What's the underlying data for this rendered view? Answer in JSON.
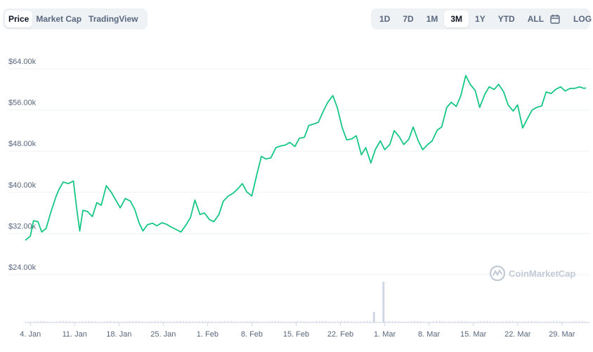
{
  "tabs_left": [
    {
      "label": "Price",
      "active": true
    },
    {
      "label": "Market Cap",
      "active": false
    },
    {
      "label": "TradingView",
      "active": false
    }
  ],
  "ranges": [
    {
      "label": "1D",
      "active": false
    },
    {
      "label": "7D",
      "active": false
    },
    {
      "label": "1M",
      "active": false
    },
    {
      "label": "3M",
      "active": true
    },
    {
      "label": "1Y",
      "active": false
    },
    {
      "label": "YTD",
      "active": false
    },
    {
      "label": "ALL",
      "active": false
    }
  ],
  "calendar_icon": "calendar-icon",
  "log_label": "LOG",
  "watermark": "CoinMarketCap",
  "colors": {
    "line": "#16c784",
    "grid": "#eff2f5",
    "volume": "#cfd6e4",
    "text": "#58667e"
  },
  "chart_data": {
    "type": "line",
    "title": "",
    "xlabel": "",
    "ylabel": "",
    "ylim": [
      16000,
      68000
    ],
    "y_ticks": [
      {
        "value": 64000,
        "label": "$64.00k"
      },
      {
        "value": 56000,
        "label": "$56.00k"
      },
      {
        "value": 48000,
        "label": "$48.00k"
      },
      {
        "value": 40000,
        "label": "$40.00k"
      },
      {
        "value": 32000,
        "label": "$32.00k"
      },
      {
        "value": 24000,
        "label": "$24.00k"
      }
    ],
    "x_ticks": [
      {
        "day": 3,
        "label": "4. Jan"
      },
      {
        "day": 10,
        "label": "11. Jan"
      },
      {
        "day": 17,
        "label": "18. Jan"
      },
      {
        "day": 24,
        "label": "25. Jan"
      },
      {
        "day": 31,
        "label": "1. Feb"
      },
      {
        "day": 38,
        "label": "8. Feb"
      },
      {
        "day": 45,
        "label": "15. Feb"
      },
      {
        "day": 52,
        "label": "22. Feb"
      },
      {
        "day": 59,
        "label": "1. Mar"
      },
      {
        "day": 66,
        "label": "8. Mar"
      },
      {
        "day": 73,
        "label": "15. Mar"
      },
      {
        "day": 80,
        "label": "22. Mar"
      },
      {
        "day": 87,
        "label": "29. Mar"
      }
    ],
    "x_range_days": [
      2.2,
      90.8
    ],
    "series": [
      {
        "values": [
          [
            2.2,
            29200
          ],
          [
            3.0,
            30000
          ],
          [
            3.5,
            33000
          ],
          [
            4.2,
            32800
          ],
          [
            4.8,
            30800
          ],
          [
            5.5,
            31500
          ],
          [
            6.2,
            34500
          ],
          [
            7.0,
            37500
          ],
          [
            7.5,
            39000
          ],
          [
            8.2,
            40500
          ],
          [
            9.0,
            40200
          ],
          [
            9.8,
            40700
          ],
          [
            10.3,
            35500
          ],
          [
            10.8,
            31000
          ],
          [
            11.3,
            35000
          ],
          [
            12.0,
            34800
          ],
          [
            12.8,
            33800
          ],
          [
            13.5,
            36500
          ],
          [
            14.2,
            36000
          ],
          [
            15.0,
            39800
          ],
          [
            15.8,
            38500
          ],
          [
            16.5,
            37000
          ],
          [
            17.2,
            35500
          ],
          [
            18.0,
            37300
          ],
          [
            18.8,
            36800
          ],
          [
            19.5,
            35200
          ],
          [
            20.2,
            32500
          ],
          [
            20.8,
            31000
          ],
          [
            21.5,
            32200
          ],
          [
            22.3,
            32500
          ],
          [
            23.0,
            32000
          ],
          [
            23.8,
            32600
          ],
          [
            24.5,
            32300
          ],
          [
            25.2,
            31800
          ],
          [
            26.0,
            31300
          ],
          [
            26.8,
            30800
          ],
          [
            27.5,
            32000
          ],
          [
            28.3,
            33600
          ],
          [
            29.0,
            37000
          ],
          [
            29.8,
            34200
          ],
          [
            30.5,
            34500
          ],
          [
            31.3,
            33200
          ],
          [
            32.0,
            32800
          ],
          [
            32.8,
            34200
          ],
          [
            33.5,
            36800
          ],
          [
            34.3,
            37800
          ],
          [
            35.0,
            38300
          ],
          [
            35.8,
            39200
          ],
          [
            36.5,
            40200
          ],
          [
            37.2,
            38600
          ],
          [
            38.0,
            37800
          ],
          [
            38.8,
            42000
          ],
          [
            39.5,
            45500
          ],
          [
            40.2,
            45000
          ],
          [
            41.0,
            45200
          ],
          [
            41.8,
            47200
          ],
          [
            42.5,
            47500
          ],
          [
            43.3,
            47700
          ],
          [
            44.0,
            48200
          ],
          [
            44.8,
            47400
          ],
          [
            45.5,
            49000
          ],
          [
            46.3,
            49200
          ],
          [
            47.0,
            51500
          ],
          [
            47.8,
            51800
          ],
          [
            48.5,
            52100
          ],
          [
            49.3,
            54300
          ],
          [
            50.0,
            56000
          ],
          [
            50.8,
            57300
          ],
          [
            51.5,
            55000
          ],
          [
            52.3,
            51000
          ],
          [
            53.0,
            48700
          ],
          [
            53.8,
            48900
          ],
          [
            54.5,
            49500
          ],
          [
            55.3,
            45800
          ],
          [
            56.0,
            47200
          ],
          [
            56.8,
            44200
          ],
          [
            57.5,
            46800
          ],
          [
            58.3,
            48500
          ],
          [
            59.0,
            46800
          ],
          [
            59.8,
            47800
          ],
          [
            60.5,
            50500
          ],
          [
            61.3,
            49300
          ],
          [
            62.0,
            47800
          ],
          [
            62.8,
            48800
          ],
          [
            63.5,
            51200
          ],
          [
            64.3,
            48500
          ],
          [
            65.0,
            46800
          ],
          [
            65.8,
            47800
          ],
          [
            66.5,
            48500
          ],
          [
            67.3,
            50600
          ],
          [
            68.0,
            51200
          ],
          [
            68.8,
            55000
          ],
          [
            69.5,
            56000
          ],
          [
            70.3,
            55200
          ],
          [
            71.0,
            57200
          ],
          [
            71.8,
            61200
          ],
          [
            72.5,
            59500
          ],
          [
            73.3,
            58300
          ],
          [
            74.0,
            55000
          ],
          [
            74.8,
            57500
          ],
          [
            75.5,
            59000
          ],
          [
            76.3,
            58500
          ],
          [
            77.0,
            59500
          ],
          [
            77.8,
            58000
          ],
          [
            78.5,
            55500
          ],
          [
            79.3,
            54300
          ],
          [
            80.0,
            55500
          ],
          [
            80.8,
            51000
          ],
          [
            81.5,
            52700
          ],
          [
            82.3,
            54500
          ],
          [
            83.0,
            55000
          ],
          [
            83.8,
            55300
          ],
          [
            84.5,
            58000
          ],
          [
            85.3,
            57700
          ],
          [
            86.0,
            58500
          ],
          [
            86.8,
            59000
          ],
          [
            87.5,
            58200
          ],
          [
            88.3,
            58700
          ],
          [
            89.0,
            58700
          ],
          [
            89.8,
            59000
          ],
          [
            90.5,
            58700
          ],
          [
            90.8,
            58800
          ]
        ]
      }
    ],
    "volume_spikes": [
      {
        "day": 57.3,
        "relative": 0.26
      },
      {
        "day": 58.8,
        "relative": 1.0
      }
    ]
  }
}
